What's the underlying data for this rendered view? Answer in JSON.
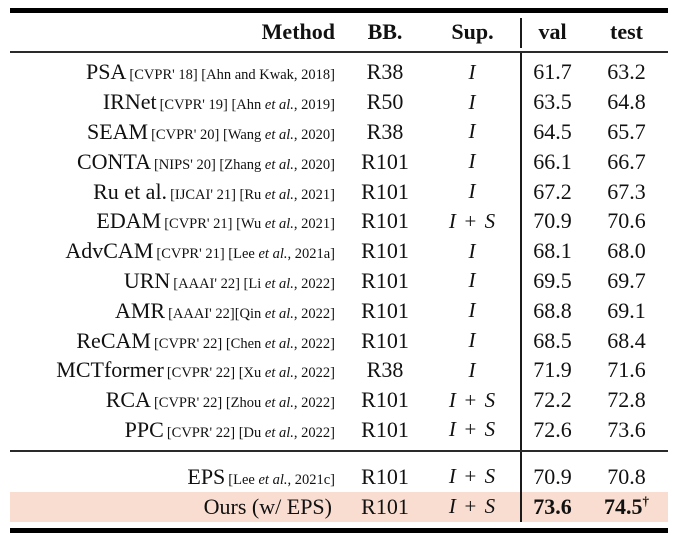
{
  "table": {
    "header": {
      "method": "Method",
      "bb": "BB.",
      "sup": "Sup.",
      "val": "val",
      "test": "test"
    },
    "colors": {
      "highlight_row_bg": "#f8ddd0",
      "rule_color": "#000000"
    },
    "rows": [
      {
        "method": "PSA",
        "cite": "[CVPR' 18] [Ahn and Kwak, 2018]",
        "bb": "R38",
        "sup": "I",
        "val": "61.7",
        "test": "63.2"
      },
      {
        "method": "IRNet",
        "cite": "[CVPR' 19] [Ahn et al., 2019]",
        "bb": "R50",
        "sup": "I",
        "val": "63.5",
        "test": "64.8"
      },
      {
        "method": "SEAM",
        "cite": "[CVPR' 20] [Wang et al., 2020]",
        "bb": "R38",
        "sup": "I",
        "val": "64.5",
        "test": "65.7"
      },
      {
        "method": "CONTA",
        "cite": "[NIPS' 20] [Zhang et al., 2020]",
        "bb": "R101",
        "sup": "I",
        "val": "66.1",
        "test": "66.7"
      },
      {
        "method": "Ru et al.",
        "cite": "[IJCAI' 21] [Ru et al., 2021]",
        "bb": "R101",
        "sup": "I",
        "val": "67.2",
        "test": "67.3"
      },
      {
        "method": "EDAM",
        "cite": "[CVPR' 21] [Wu et al., 2021]",
        "bb": "R101",
        "sup": "I + S",
        "val": "70.9",
        "test": "70.6"
      },
      {
        "method": "AdvCAM",
        "cite": "[CVPR' 21] [Lee et al., 2021a]",
        "bb": "R101",
        "sup": "I",
        "val": "68.1",
        "test": "68.0"
      },
      {
        "method": "URN",
        "cite": "[AAAI' 22] [Li et al., 2022]",
        "bb": "R101",
        "sup": "I",
        "val": "69.5",
        "test": "69.7"
      },
      {
        "method": "AMR",
        "cite": "[AAAI' 22][Qin et al., 2022]",
        "bb": "R101",
        "sup": "I",
        "val": "68.8",
        "test": "69.1"
      },
      {
        "method": "ReCAM",
        "cite": "[CVPR' 22] [Chen et al., 2022]",
        "bb": "R101",
        "sup": "I",
        "val": "68.5",
        "test": "68.4"
      },
      {
        "method": "MCTformer",
        "cite": "[CVPR' 22] [Xu et al., 2022]",
        "bb": "R38",
        "sup": "I",
        "val": "71.9",
        "test": "71.6"
      },
      {
        "method": "RCA",
        "cite": "[CVPR' 22] [Zhou et al., 2022]",
        "bb": "R101",
        "sup": "I + S",
        "val": "72.2",
        "test": "72.8"
      },
      {
        "method": "PPC",
        "cite": "[CVPR' 22] [Du et al., 2022]",
        "bb": "R101",
        "sup": "I + S",
        "val": "72.6",
        "test": "73.6"
      }
    ],
    "rows2": [
      {
        "method": "EPS",
        "cite": "[Lee et al., 2021c]",
        "bb": "R101",
        "sup": "I + S",
        "val": "70.9",
        "test": "70.8"
      },
      {
        "method": "Ours (w/ EPS)",
        "cite": "",
        "bb": "R101",
        "sup": "I + S",
        "val": "73.6",
        "test": "74.5",
        "test_sup": "†"
      }
    ]
  }
}
